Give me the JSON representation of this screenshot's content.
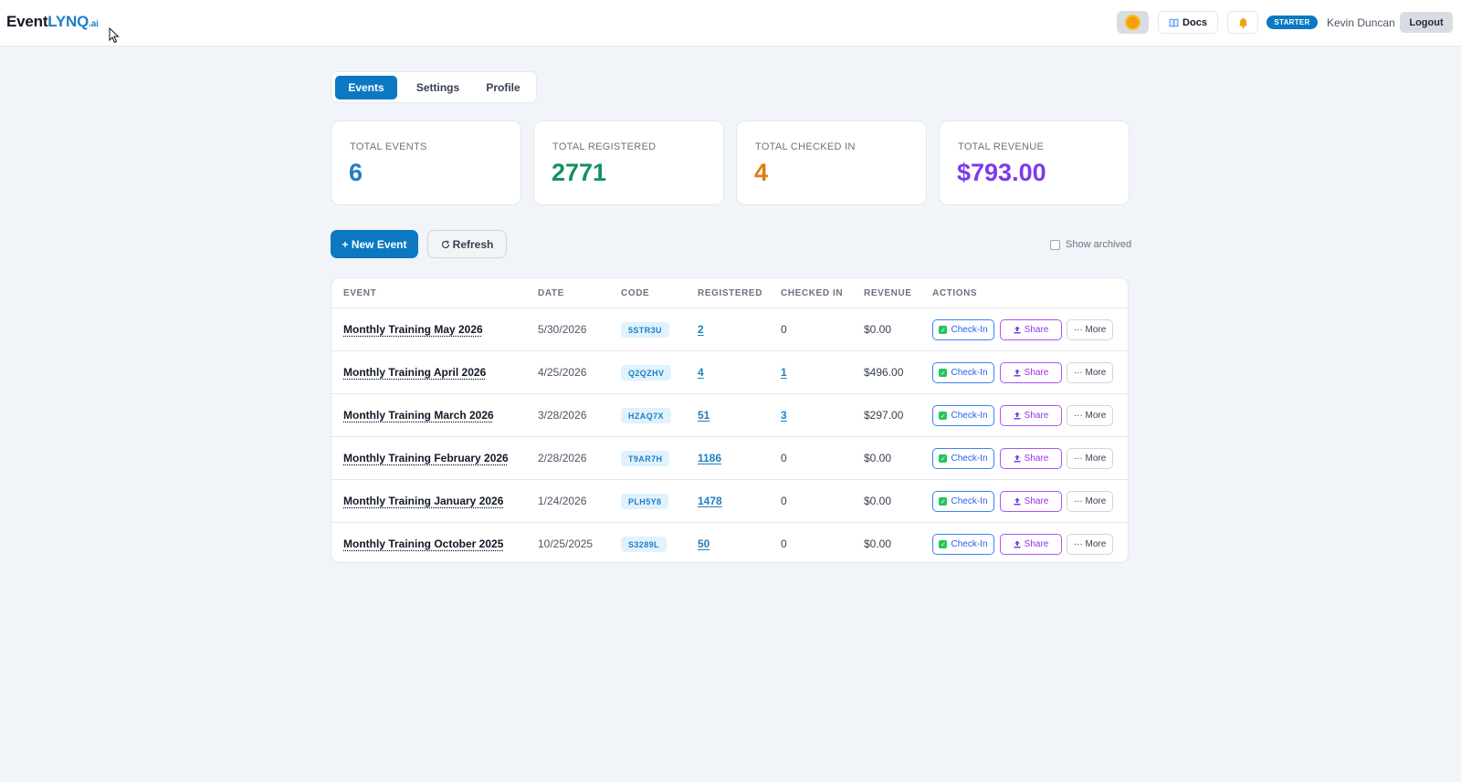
{
  "header": {
    "logo_main": "Event",
    "logo_accent": "LYNQ",
    "logo_suffix": ".ai",
    "docs_label": "Docs",
    "plan_badge": "STARTER",
    "user_name": "Kevin Duncan",
    "logout_label": "Logout",
    "icons": {
      "theme": "sun-icon",
      "docs": "book-icon",
      "notifications": "bell-icon"
    }
  },
  "tabs": [
    {
      "label": "Events",
      "active": true
    },
    {
      "label": "Settings",
      "active": false
    },
    {
      "label": "Profile",
      "active": false
    }
  ],
  "stats": [
    {
      "label": "TOTAL EVENTS",
      "value": "6",
      "color": "#1e7fc4"
    },
    {
      "label": "TOTAL REGISTERED",
      "value": "2771",
      "color": "#15905e"
    },
    {
      "label": "TOTAL CHECKED IN",
      "value": "4",
      "color": "#e07a10"
    },
    {
      "label": "TOTAL REVENUE",
      "value": "$793.00",
      "color": "#7c3aed"
    }
  ],
  "toolbar": {
    "new_event_label": "+ New Event",
    "refresh_label": "Refresh",
    "show_archived_label": "Show archived",
    "show_archived_checked": false
  },
  "table": {
    "columns": [
      "EVENT",
      "DATE",
      "CODE",
      "REGISTERED",
      "CHECKED IN",
      "REVENUE",
      "ACTIONS"
    ],
    "action_labels": {
      "checkin": "Check-In",
      "share": "Share",
      "more": "··· More"
    },
    "rows": [
      {
        "name": "Monthly Training May 2026",
        "date": "5/30/2026",
        "code": "5STR3U",
        "registered": "2",
        "checked_in": "0",
        "revenue": "$0.00"
      },
      {
        "name": "Monthly Training April 2026",
        "date": "4/25/2026",
        "code": "Q2QZHV",
        "registered": "4",
        "checked_in": "1",
        "revenue": "$496.00"
      },
      {
        "name": "Monthly Training March 2026",
        "date": "3/28/2026",
        "code": "HZAQ7X",
        "registered": "51",
        "checked_in": "3",
        "revenue": "$297.00"
      },
      {
        "name": "Monthly Training February 2026",
        "date": "2/28/2026",
        "code": "T9AR7H",
        "registered": "1186",
        "checked_in": "0",
        "revenue": "$0.00"
      },
      {
        "name": "Monthly Training January 2026",
        "date": "1/24/2026",
        "code": "PLH5Y8",
        "registered": "1478",
        "checked_in": "0",
        "revenue": "$0.00"
      },
      {
        "name": "Monthly Training October 2025",
        "date": "10/25/2025",
        "code": "S3289L",
        "registered": "50",
        "checked_in": "0",
        "revenue": "$0.00"
      }
    ]
  }
}
